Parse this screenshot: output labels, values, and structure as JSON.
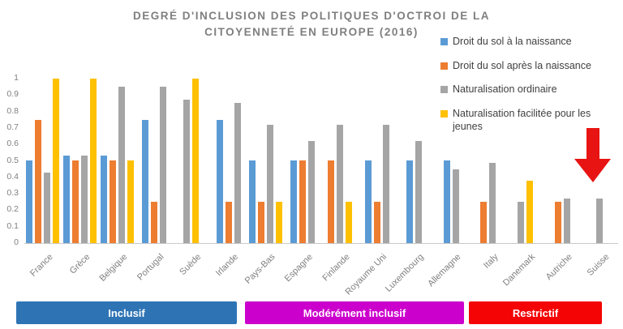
{
  "title": {
    "line1": "DEGRÉ D'INCLUSION DES POLITIQUES D'OCTROI DE LA",
    "line2": "CITOYENNETÉ EN EUROPE (2016)"
  },
  "chart_data": {
    "type": "bar",
    "title": "DEGRÉ D'INCLUSION DES POLITIQUES D'OCTROI DE LA CITOYENNETÉ EN EUROPE (2016)",
    "categories": [
      "France",
      "Grèce",
      "Belgique",
      "Portugal",
      "Suède",
      "Irlande",
      "Pays-Bas",
      "Espagne",
      "Finlande",
      "Royaume Uni",
      "Luxembourg",
      "Allemagne",
      "Italy",
      "Danemark",
      "Autriche",
      "Suisse"
    ],
    "series": [
      {
        "name": "Droit du sol à la naissance",
        "color": "#5B9BD5",
        "values": [
          0.5,
          0.53,
          0.53,
          0.75,
          null,
          0.75,
          0.5,
          0.5,
          null,
          0.5,
          0.5,
          0.5,
          null,
          null,
          null,
          null
        ]
      },
      {
        "name": "Droit du sol après la naissance",
        "color": "#ED7D31",
        "values": [
          0.75,
          0.5,
          0.5,
          0.25,
          null,
          0.25,
          0.25,
          0.5,
          0.5,
          0.25,
          null,
          null,
          0.25,
          null,
          0.25,
          null
        ]
      },
      {
        "name": "Naturalisation ordinaire",
        "color": "#A5A5A5",
        "values": [
          0.43,
          0.53,
          0.95,
          0.95,
          0.87,
          0.85,
          0.72,
          0.62,
          0.72,
          0.72,
          0.62,
          0.45,
          0.49,
          0.25,
          0.27,
          0.27
        ]
      },
      {
        "name": "Naturalisation facilitée pour les jeunes",
        "color": "#FFC000",
        "values": [
          1,
          1,
          0.5,
          null,
          1,
          null,
          0.25,
          null,
          0.25,
          null,
          null,
          null,
          null,
          0.38,
          null,
          null
        ]
      }
    ],
    "ylim": [
      0,
      1
    ],
    "ytick_labels": [
      "1",
      "0.9",
      "0.8",
      "0.7",
      "0.6",
      "0.5",
      "0.4",
      "0.3",
      "0.2",
      "0.1",
      "0"
    ],
    "grid": false,
    "legend_position": "top-right"
  },
  "bands": [
    {
      "label": "Inclusif",
      "color": "#2E74B5"
    },
    {
      "label": "Modérément inclusif",
      "color": "#CC00CC"
    },
    {
      "label": "Restrictif",
      "color": "#F40404"
    }
  ],
  "annotations": {
    "arrow": {
      "shape": "down-arrow",
      "color": "#E81414",
      "points_to": "Suisse"
    }
  }
}
